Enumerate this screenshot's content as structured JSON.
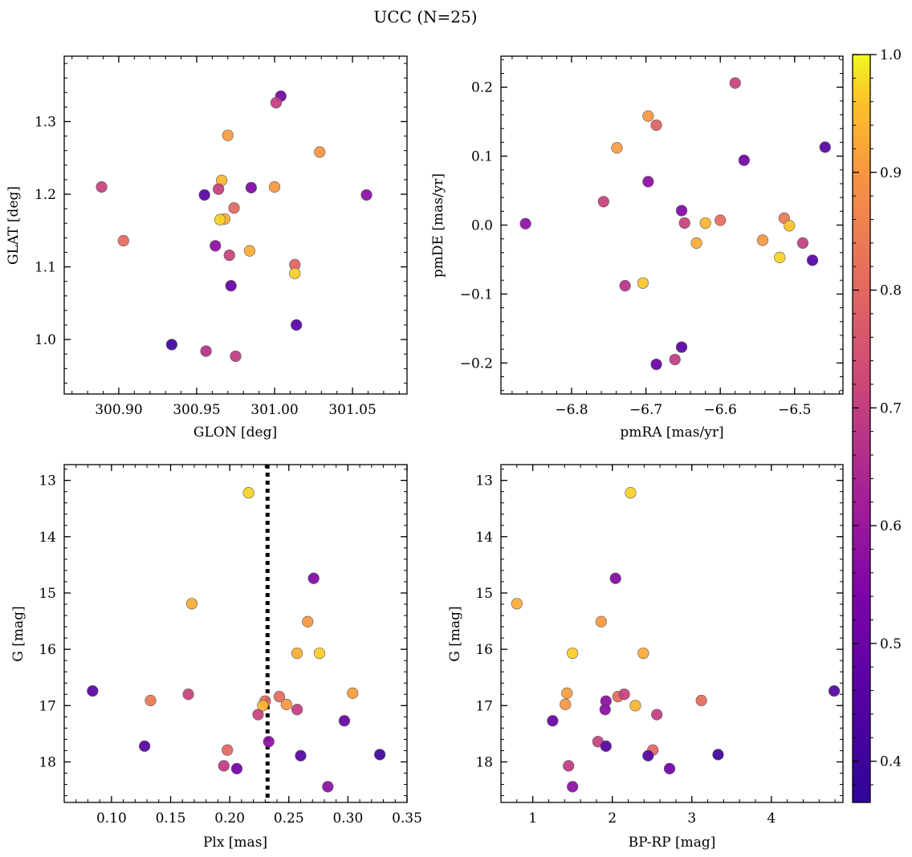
{
  "figure": {
    "title": "UCC (N=25)"
  },
  "colorbar": {
    "range": [
      0.365,
      1.0
    ],
    "ticks": [
      0.4,
      0.5,
      0.6,
      0.7,
      0.8,
      0.9,
      1.0
    ],
    "tick_labels": [
      "0.4",
      "0.5",
      "0.6",
      "0.7",
      "0.8",
      "0.9",
      "1.0"
    ],
    "colormap": "plasma",
    "colormap_range": [
      0.08,
      0.95
    ]
  },
  "chart_data": [
    {
      "type": "scatter",
      "id": "glon-glat",
      "xlabel": "GLON [deg]",
      "ylabel": "GLAT [deg]",
      "xlim": [
        300.865,
        301.085
      ],
      "ylim": [
        0.925,
        1.39
      ],
      "y_inverted": false,
      "xticks": [
        300.9,
        300.95,
        301.0,
        301.05
      ],
      "xtick_labels": [
        "300.90",
        "300.95",
        "301.00",
        "301.05"
      ],
      "xminor": 0.01,
      "yticks": [
        1.0,
        1.1,
        1.2,
        1.3
      ],
      "ytick_labels": [
        "1.0",
        "1.1",
        "1.2",
        "1.3"
      ],
      "yminor": 0.02,
      "x": [
        301.004,
        301.001,
        300.97,
        301.029,
        300.889,
        300.955,
        300.966,
        300.985,
        301.0,
        301.059,
        300.964,
        300.968,
        300.974,
        300.903,
        300.962,
        300.971,
        300.984,
        301.013,
        301.013,
        300.972,
        301.014,
        300.934,
        300.956,
        300.975,
        300.965
      ],
      "y": [
        1.335,
        1.326,
        1.281,
        1.258,
        1.21,
        1.199,
        1.219,
        1.209,
        1.21,
        1.199,
        1.207,
        1.166,
        1.181,
        1.136,
        1.129,
        1.116,
        1.122,
        1.103,
        1.091,
        1.074,
        1.02,
        0.993,
        0.984,
        0.977,
        1.165
      ],
      "c": [
        0.47,
        0.65,
        0.87,
        0.85,
        0.66,
        0.42,
        0.92,
        0.5,
        0.86,
        0.52,
        0.65,
        0.9,
        0.75,
        0.76,
        0.52,
        0.66,
        0.9,
        0.74,
        0.96,
        0.45,
        0.42,
        0.38,
        0.62,
        0.64,
        0.97
      ]
    },
    {
      "type": "scatter",
      "id": "pmra-pmde",
      "xlabel": "pmRA [mas/yr]",
      "ylabel": "pmDE [mas/yr]",
      "xlim": [
        -6.895,
        -6.435
      ],
      "ylim": [
        -0.245,
        0.245
      ],
      "y_inverted": false,
      "xticks": [
        -6.8,
        -6.7,
        -6.6,
        -6.5
      ],
      "xtick_labels": [
        "−6.8",
        "−6.7",
        "−6.6",
        "−6.5"
      ],
      "xminor": 0.02,
      "yticks": [
        -0.2,
        -0.1,
        0.0,
        0.1,
        0.2
      ],
      "ytick_labels": [
        "−0.2",
        "−0.1",
        "0.0",
        "0.1",
        "0.2"
      ],
      "yminor": 0.02,
      "x": [
        -6.58,
        -6.697,
        -6.686,
        -6.739,
        -6.568,
        -6.459,
        -6.697,
        -6.757,
        -6.862,
        -6.652,
        -6.648,
        -6.62,
        -6.6,
        -6.514,
        -6.507,
        -6.632,
        -6.543,
        -6.489,
        -6.476,
        -6.52,
        -6.704,
        -6.728,
        -6.652,
        -6.686,
        -6.661
      ],
      "y": [
        0.206,
        0.158,
        0.145,
        0.112,
        0.094,
        0.113,
        0.063,
        0.034,
        0.002,
        0.021,
        0.003,
        0.003,
        0.007,
        0.01,
        -0.001,
        -0.026,
        -0.022,
        -0.026,
        -0.051,
        -0.047,
        -0.084,
        -0.088,
        -0.177,
        -0.202,
        -0.195
      ],
      "c": [
        0.66,
        0.86,
        0.74,
        0.87,
        0.47,
        0.42,
        0.52,
        0.66,
        0.52,
        0.5,
        0.66,
        0.92,
        0.76,
        0.79,
        0.94,
        0.9,
        0.86,
        0.65,
        0.42,
        0.97,
        0.95,
        0.62,
        0.42,
        0.45,
        0.64
      ]
    },
    {
      "type": "scatter",
      "id": "plx-g",
      "xlabel": "Plx [mas]",
      "ylabel": "G [mag]",
      "xlim": [
        0.06,
        0.35
      ],
      "ylim": [
        18.72,
        12.72
      ],
      "y_inverted": true,
      "xticks": [
        0.1,
        0.15,
        0.2,
        0.25,
        0.3,
        0.35
      ],
      "xtick_labels": [
        "0.10",
        "0.15",
        "0.20",
        "0.25",
        "0.30",
        "0.35"
      ],
      "xminor": 0.01,
      "yticks": [
        13,
        14,
        15,
        16,
        17,
        18
      ],
      "ytick_labels": [
        "13",
        "14",
        "15",
        "16",
        "17",
        "18"
      ],
      "yminor": 0.2,
      "vline": 0.232,
      "x": [
        0.216,
        0.271,
        0.168,
        0.266,
        0.257,
        0.276,
        0.084,
        0.133,
        0.165,
        0.23,
        0.228,
        0.242,
        0.248,
        0.304,
        0.257,
        0.224,
        0.297,
        0.128,
        0.198,
        0.233,
        0.26,
        0.327,
        0.195,
        0.206,
        0.283
      ],
      "y": [
        13.22,
        14.74,
        15.19,
        15.51,
        16.07,
        16.07,
        16.74,
        16.91,
        16.8,
        16.92,
        17.0,
        16.84,
        16.98,
        16.78,
        17.07,
        17.16,
        17.27,
        17.72,
        17.79,
        17.64,
        17.89,
        17.87,
        18.07,
        18.12,
        18.44
      ],
      "c": [
        0.97,
        0.5,
        0.9,
        0.86,
        0.9,
        0.96,
        0.42,
        0.79,
        0.66,
        0.76,
        0.92,
        0.76,
        0.86,
        0.87,
        0.65,
        0.66,
        0.45,
        0.42,
        0.75,
        0.52,
        0.42,
        0.38,
        0.64,
        0.47,
        0.52
      ]
    },
    {
      "type": "scatter",
      "id": "bprp-g",
      "xlabel": "BP-RP [mag]",
      "ylabel": "G [mag]",
      "xlim": [
        0.6,
        4.9
      ],
      "ylim": [
        18.72,
        12.72
      ],
      "y_inverted": true,
      "xticks": [
        1,
        2,
        3,
        4
      ],
      "xtick_labels": [
        "1",
        "2",
        "3",
        "4"
      ],
      "xminor": 0.2,
      "yticks": [
        13,
        14,
        15,
        16,
        17,
        18
      ],
      "ytick_labels": [
        "13",
        "14",
        "15",
        "16",
        "17",
        "18"
      ],
      "yminor": 0.2,
      "x": [
        2.23,
        2.04,
        0.8,
        1.86,
        1.5,
        2.39,
        4.79,
        1.43,
        1.41,
        1.92,
        2.29,
        3.12,
        2.07,
        2.15,
        2.56,
        1.25,
        1.91,
        1.82,
        2.51,
        2.45,
        3.33,
        1.45,
        2.72,
        1.5,
        1.92
      ],
      "y": [
        13.22,
        14.74,
        15.19,
        15.51,
        16.07,
        16.07,
        16.74,
        16.78,
        16.98,
        16.92,
        17.0,
        16.91,
        16.84,
        16.8,
        17.16,
        17.27,
        17.07,
        17.64,
        17.79,
        17.89,
        17.87,
        18.07,
        18.12,
        18.44,
        17.72
      ],
      "c": [
        0.97,
        0.5,
        0.9,
        0.86,
        0.96,
        0.9,
        0.42,
        0.87,
        0.86,
        0.52,
        0.92,
        0.76,
        0.76,
        0.66,
        0.65,
        0.45,
        0.52,
        0.66,
        0.75,
        0.42,
        0.38,
        0.64,
        0.47,
        0.52,
        0.42
      ]
    }
  ]
}
